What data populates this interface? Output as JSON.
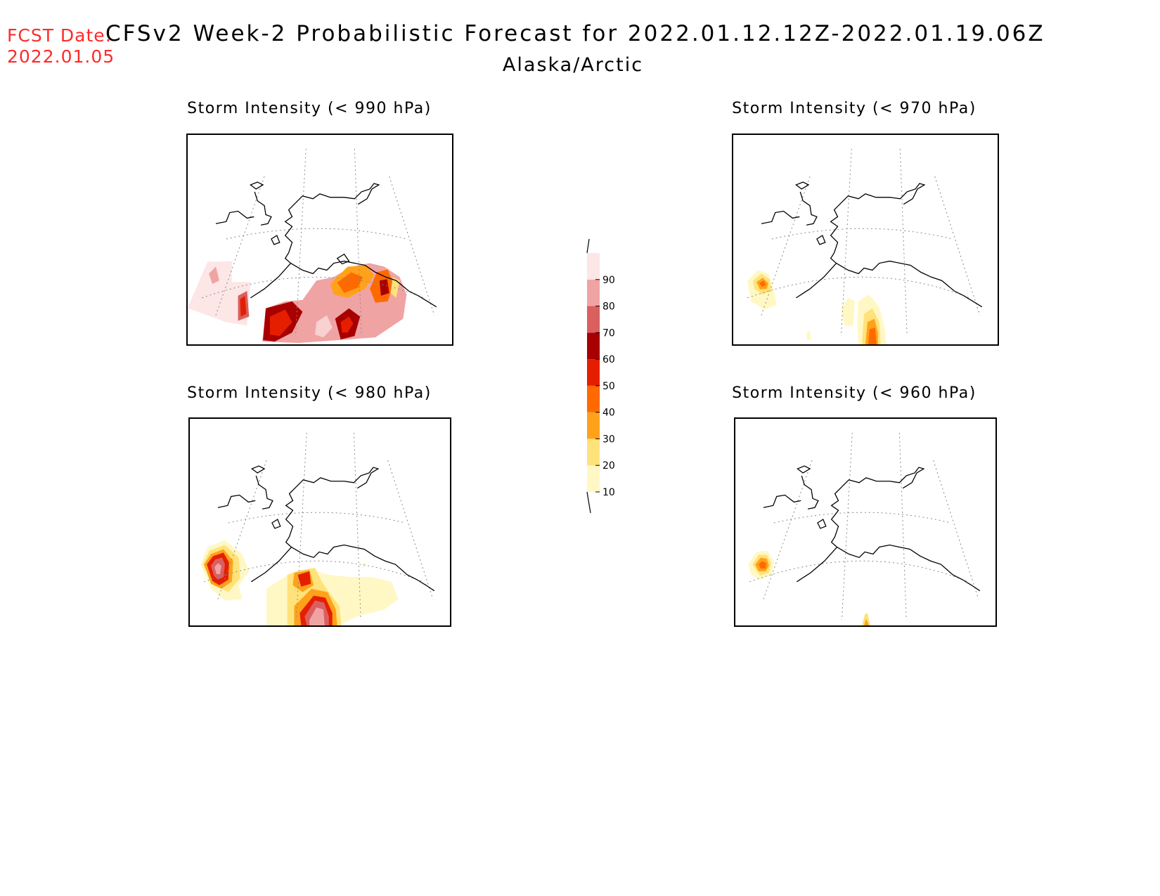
{
  "header": {
    "fcst_label": "FCST Date:",
    "fcst_date": "2022.01.05",
    "title": "CFSv2 Week-2 Probabilistic Forecast for 2022.01.12.12Z-2022.01.19.06Z",
    "region": "Alaska/Arctic"
  },
  "panels": [
    {
      "id": "p990",
      "title": "Storm Intensity (< 990 hPa)"
    },
    {
      "id": "p970",
      "title": "Storm Intensity (< 970 hPa)"
    },
    {
      "id": "p980",
      "title": "Storm Intensity (< 980 hPa)"
    },
    {
      "id": "p960",
      "title": "Storm Intensity (< 960 hPa)"
    }
  ],
  "colorbar": {
    "levels": [
      "10",
      "20",
      "30",
      "40",
      "50",
      "60",
      "70",
      "80",
      "90"
    ],
    "colors": [
      "#fff8c4",
      "#ffe27a",
      "#ffa21a",
      "#ff6a00",
      "#e61e00",
      "#a80000",
      "#d9605f",
      "#f0a3a3",
      "#fde6e6"
    ]
  }
}
